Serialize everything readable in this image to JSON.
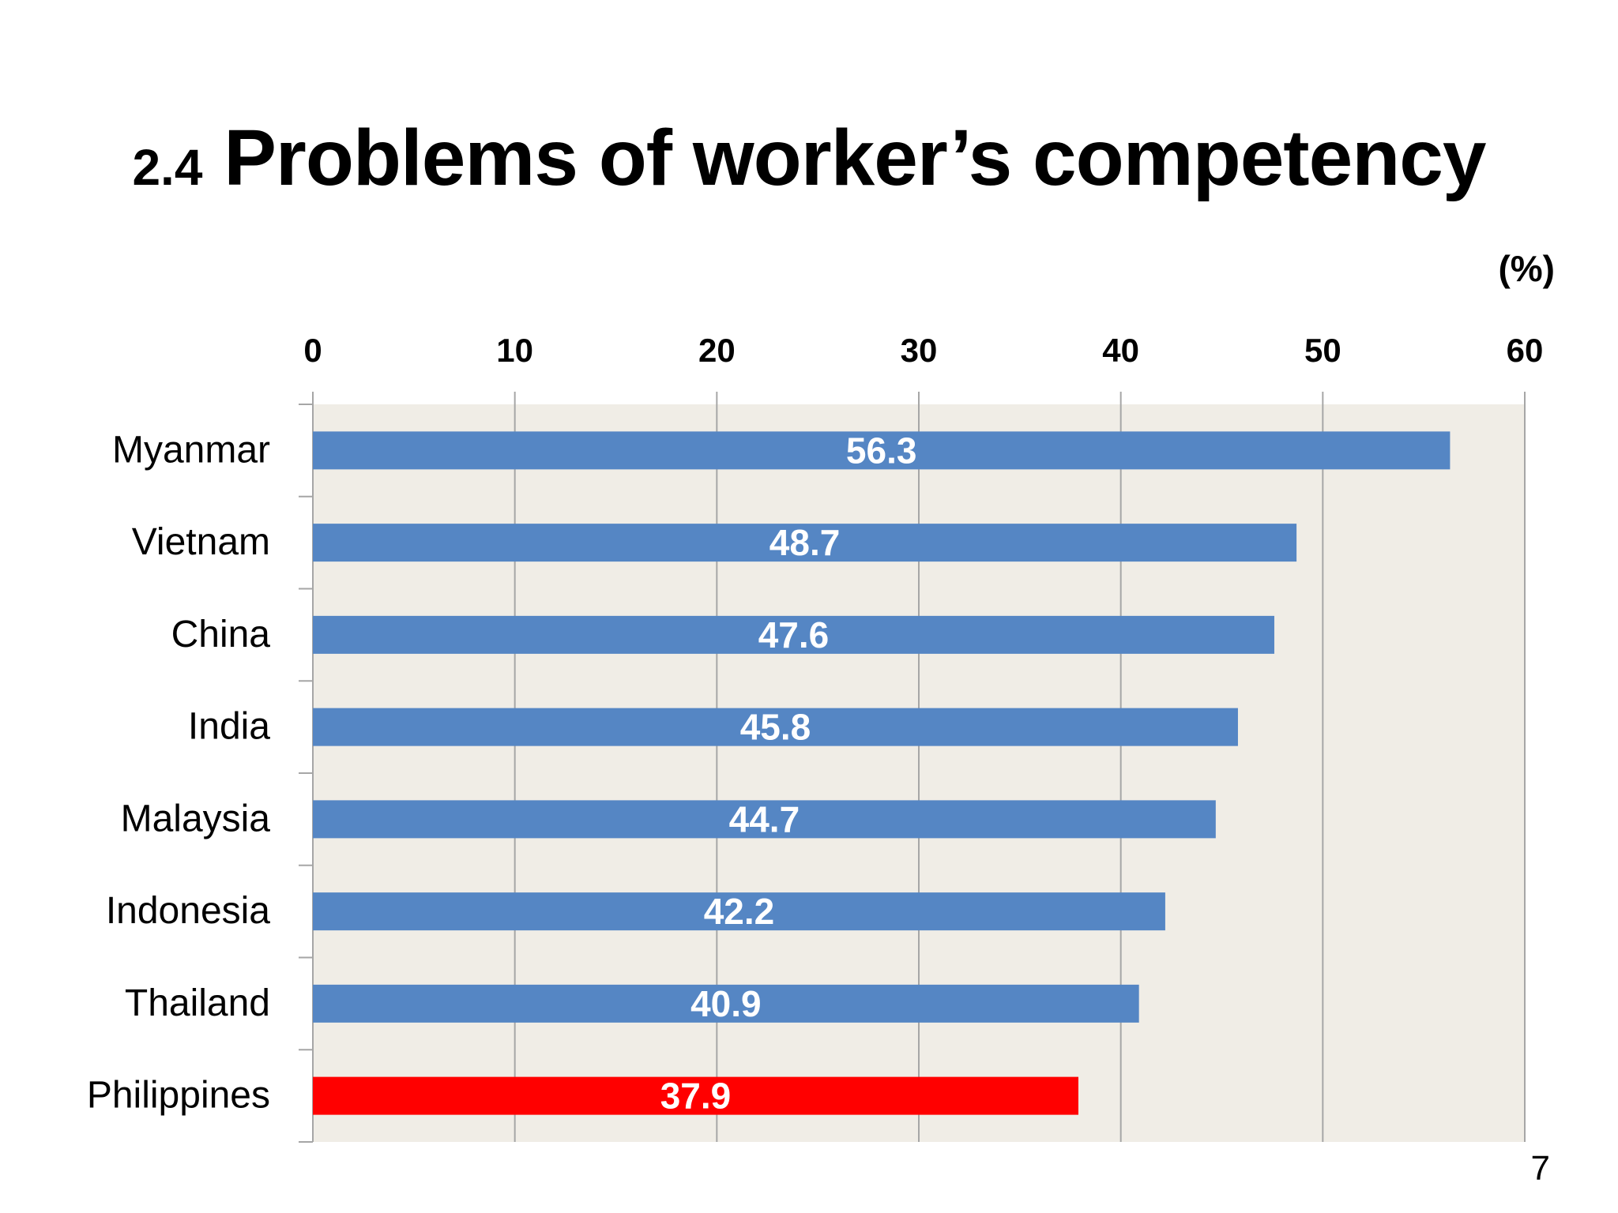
{
  "slide": {
    "title_prefix": "2.4",
    "title": "Problems of worker’s competency",
    "page_number": "7"
  },
  "chart_data": {
    "type": "bar",
    "orientation": "horizontal",
    "title": "",
    "unit": "(%)",
    "xlabel": "",
    "ylabel": "",
    "xlim": [
      0,
      60
    ],
    "x_ticks": [
      0,
      10,
      20,
      30,
      40,
      50,
      60
    ],
    "x_axis_position": "top",
    "grid": true,
    "legend": "none",
    "categories": [
      "Myanmar",
      "Vietnam",
      "China",
      "India",
      "Malaysia",
      "Indonesia",
      "Thailand",
      "Philippines"
    ],
    "values": [
      56.3,
      48.7,
      47.6,
      45.8,
      44.7,
      42.2,
      40.9,
      37.9
    ],
    "data_labels": [
      "56.3",
      "48.7",
      "47.6",
      "45.8",
      "44.7",
      "42.2",
      "40.9",
      "37.9"
    ],
    "colors": {
      "bar": "#5586c4",
      "highlight": "#ff0000",
      "plot_background": "#f0ede6",
      "grid": "#a6a6a6",
      "label_text": "#ffffff"
    },
    "highlight_category": "Philippines"
  }
}
